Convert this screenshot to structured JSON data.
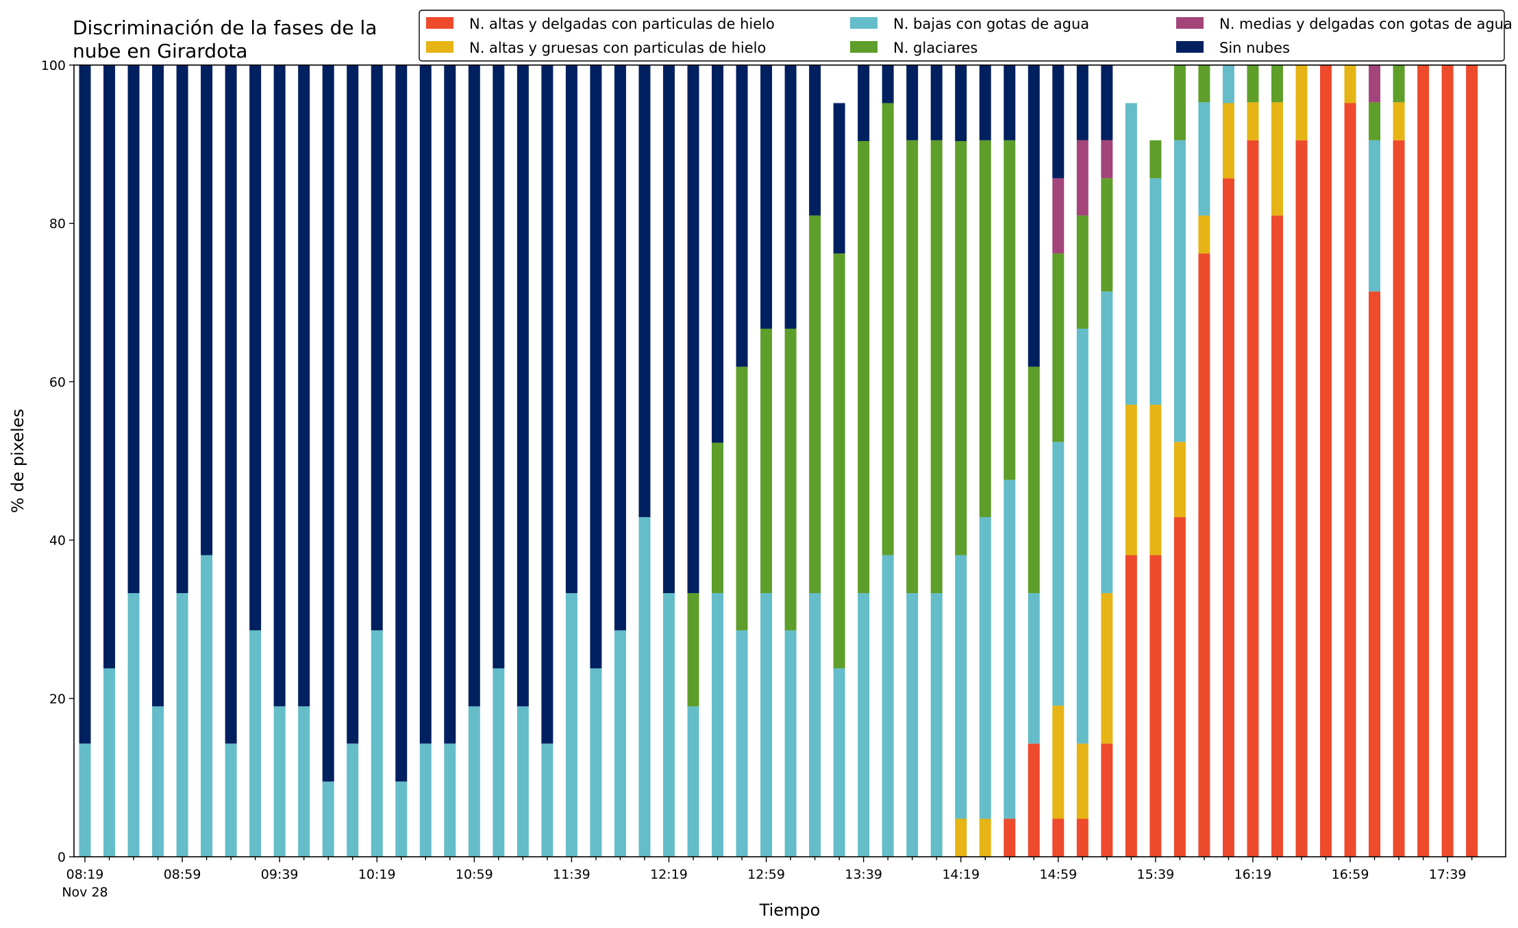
{
  "chart_data": {
    "type": "bar",
    "stacked": true,
    "title": "Discriminación de la fases de la nube en Girardota",
    "title_lines": [
      "Discriminación de la fases de la",
      "nube en Girardota"
    ],
    "xlabel": "Tiempo",
    "ylabel": "% de pixeles",
    "ylim": [
      0,
      100
    ],
    "yticks": [
      "0",
      "20",
      "40",
      "60",
      "80",
      "100"
    ],
    "xtick_labels": [
      "08:19",
      "08:59",
      "09:39",
      "10:19",
      "10:59",
      "11:39",
      "12:19",
      "12:59",
      "13:39",
      "14:19",
      "14:59",
      "15:39",
      "16:19",
      "16:59",
      "17:39"
    ],
    "x_date_label": "Nov 28",
    "legend_location": "top-right",
    "grid": false,
    "categories": [
      "08:19",
      "08:29",
      "08:39",
      "08:49",
      "08:59",
      "09:09",
      "09:19",
      "09:29",
      "09:39",
      "09:49",
      "09:59",
      "10:09",
      "10:19",
      "10:29",
      "10:39",
      "10:49",
      "10:59",
      "11:09",
      "11:19",
      "11:29",
      "11:39",
      "11:49",
      "11:59",
      "12:09",
      "12:19",
      "12:29",
      "12:39",
      "12:49",
      "12:59",
      "13:09",
      "13:19",
      "13:29",
      "13:39",
      "13:49",
      "13:59",
      "14:09",
      "14:19",
      "14:29",
      "14:39",
      "14:49",
      "14:59",
      "15:09",
      "15:19",
      "15:29",
      "15:39",
      "15:49",
      "15:59",
      "16:09",
      "16:19",
      "16:29",
      "16:39",
      "16:49",
      "16:59",
      "17:09",
      "17:19",
      "17:29",
      "17:39",
      "17:49"
    ],
    "series": [
      {
        "name": "N. altas y delgadas con particulas de hielo",
        "color": "#ee4a2c",
        "values": [
          0,
          0,
          0,
          0,
          0,
          0,
          0,
          0,
          0,
          0,
          0,
          0,
          0,
          0,
          0,
          0,
          0,
          0,
          0,
          0,
          0,
          0,
          0,
          0,
          0,
          0,
          0,
          0,
          0,
          0,
          0,
          0,
          0,
          0,
          0,
          0,
          0,
          0,
          4.8,
          14.3,
          4.8,
          4.8,
          14.3,
          38.1,
          38.1,
          42.9,
          76.2,
          85.7,
          90.5,
          81,
          90.5,
          100,
          95.2,
          71.4,
          90.5,
          100,
          100,
          100
        ]
      },
      {
        "name": "N. altas y gruesas con particulas de hielo",
        "color": "#e6b414",
        "values": [
          0,
          0,
          0,
          0,
          0,
          0,
          0,
          0,
          0,
          0,
          0,
          0,
          0,
          0,
          0,
          0,
          0,
          0,
          0,
          0,
          0,
          0,
          0,
          0,
          0,
          0,
          0,
          0,
          0,
          0,
          0,
          0,
          0,
          0,
          0,
          0,
          4.8,
          4.8,
          0,
          0,
          14.3,
          9.5,
          19,
          19,
          19,
          9.5,
          4.8,
          9.5,
          4.8,
          14.3,
          9.5,
          0,
          4.8,
          0,
          4.8,
          0,
          0,
          0
        ]
      },
      {
        "name": "N. bajas con gotas de agua",
        "color": "#64bdc9",
        "values": [
          14.3,
          23.8,
          33.3,
          19,
          33.3,
          38.1,
          14.3,
          28.6,
          19,
          19,
          9.5,
          14.3,
          28.6,
          9.5,
          14.3,
          14.3,
          19,
          23.8,
          19,
          14.3,
          33.3,
          23.8,
          28.6,
          42.9,
          33.3,
          19,
          33.3,
          28.6,
          33.3,
          28.6,
          33.3,
          23.8,
          33.3,
          38.1,
          33.3,
          33.3,
          33.3,
          38.1,
          42.8,
          19,
          33.3,
          52.4,
          38.1,
          38.1,
          28.6,
          38.1,
          14.3,
          4.8,
          0,
          0,
          0,
          0,
          0,
          19.1,
          0,
          0,
          0,
          0
        ]
      },
      {
        "name": "N. glaciares",
        "color": "#5e9e2a",
        "values": [
          0,
          0,
          0,
          0,
          0,
          0,
          0,
          0,
          0,
          0,
          0,
          0,
          0,
          0,
          0,
          0,
          0,
          0,
          0,
          0,
          0,
          0,
          0,
          0,
          0,
          14.3,
          19,
          33.3,
          33.4,
          38.1,
          47.7,
          52.4,
          57.1,
          57.1,
          57.2,
          57.2,
          52.3,
          47.6,
          42.9,
          28.6,
          23.8,
          14.3,
          14.3,
          0,
          4.8,
          14.3,
          4.8,
          0,
          4.7,
          4.7,
          0,
          0,
          0,
          4.8,
          4.7,
          0,
          0,
          0
        ]
      },
      {
        "name": "N. medias y delgadas con gotas de agua",
        "color": "#a3457a",
        "values": [
          0,
          0,
          0,
          0,
          0,
          0,
          0,
          0,
          0,
          0,
          0,
          0,
          0,
          0,
          0,
          0,
          0,
          0,
          0,
          0,
          0,
          0,
          0,
          0,
          0,
          0,
          0,
          0,
          0,
          0,
          0,
          0,
          0,
          0,
          0,
          0,
          0,
          0,
          0,
          0,
          9.5,
          9.5,
          4.8,
          0,
          0,
          0,
          0,
          0,
          0,
          0,
          0,
          0,
          0,
          4.7,
          0,
          0,
          0,
          0
        ]
      },
      {
        "name": "Sin nubes",
        "color": "#012060",
        "values": [
          85.7,
          76.2,
          66.7,
          81,
          66.7,
          61.9,
          85.7,
          71.4,
          81,
          81,
          90.5,
          85.7,
          71.4,
          90.5,
          85.7,
          85.7,
          81,
          76.2,
          81,
          85.7,
          66.7,
          76.2,
          71.4,
          57.1,
          66.7,
          66.7,
          47.7,
          38.1,
          33.3,
          33.3,
          19,
          19,
          9.6,
          4.8,
          9.5,
          9.5,
          9.6,
          9.5,
          9.5,
          38.1,
          14.3,
          9.5,
          9.5,
          0,
          0,
          0,
          0,
          0,
          0,
          0,
          0,
          0,
          0,
          0,
          0,
          0,
          0,
          0
        ]
      }
    ]
  }
}
